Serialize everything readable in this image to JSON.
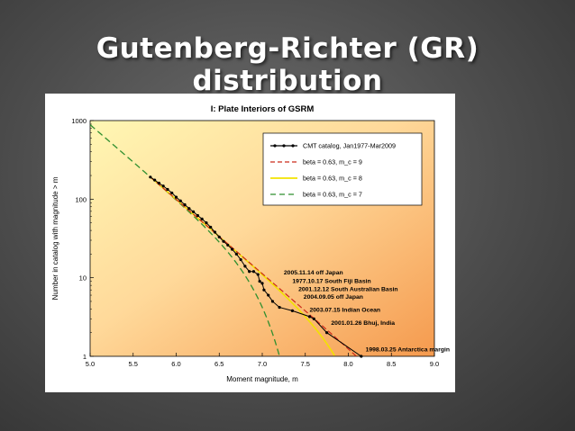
{
  "slide": {
    "title": "Gutenberg-Richter (GR) distribution"
  },
  "chart_data": {
    "type": "line",
    "title": "I: Plate Interiors of GSRM",
    "xlabel": "Moment magnitude, m",
    "ylabel": "Number in catalog with magnitude > m",
    "xlim": [
      5.0,
      9.0
    ],
    "ylim": [
      1,
      1000
    ],
    "yscale": "log",
    "x_ticks": [
      "5.0",
      "5.5",
      "6.0",
      "6.5",
      "7.0",
      "7.5",
      "8.0",
      "8.5",
      "9.0"
    ],
    "y_ticks": [
      {
        "value": 1,
        "label": "1"
      },
      {
        "value": 10,
        "label": "10"
      },
      {
        "value": 100,
        "label": "100"
      },
      {
        "value": 1000,
        "label": "1000"
      }
    ],
    "legend_position": "top-right",
    "series": [
      {
        "name": "CMT catalog, Jan1977-Mar2009",
        "color": "#000000",
        "style": "solid-markers",
        "points": [
          [
            5.7,
            191
          ],
          [
            5.75,
            175
          ],
          [
            5.8,
            160
          ],
          [
            5.85,
            147
          ],
          [
            5.9,
            133
          ],
          [
            5.95,
            120
          ],
          [
            6.0,
            106
          ],
          [
            6.05,
            95
          ],
          [
            6.1,
            85
          ],
          [
            6.15,
            76
          ],
          [
            6.2,
            69
          ],
          [
            6.25,
            62
          ],
          [
            6.3,
            56
          ],
          [
            6.35,
            50
          ],
          [
            6.4,
            44
          ],
          [
            6.45,
            38
          ],
          [
            6.5,
            33
          ],
          [
            6.55,
            29
          ],
          [
            6.6,
            26
          ],
          [
            6.65,
            23
          ],
          [
            6.7,
            20
          ],
          [
            6.75,
            17
          ],
          [
            6.8,
            14
          ],
          [
            6.85,
            12
          ],
          [
            6.9,
            12
          ],
          [
            6.95,
            11
          ],
          [
            6.97,
            9
          ],
          [
            7.0,
            8.5
          ],
          [
            7.02,
            7
          ],
          [
            7.07,
            6
          ],
          [
            7.12,
            5
          ],
          [
            7.2,
            4.2
          ],
          [
            7.35,
            3.8
          ],
          [
            7.55,
            3.2
          ],
          [
            7.6,
            3.0
          ],
          [
            7.75,
            2.0
          ],
          [
            8.15,
            1.0
          ]
        ]
      },
      {
        "name": "beta = 0.63, m_c = 9",
        "color": "#cc2a1a",
        "style": "dashed",
        "m_c": 9,
        "beta": 0.63
      },
      {
        "name": "beta = 0.63, m_c = 8",
        "color": "#f2e200",
        "style": "solid",
        "m_c": 8,
        "beta": 0.63
      },
      {
        "name": "beta = 0.63, m_c = 7",
        "color": "#2f8f2f",
        "style": "dashed",
        "m_c": 7,
        "beta": 0.63
      }
    ],
    "annotations": [
      {
        "text": "2005.11.14 off Japan",
        "x": 7.25,
        "y": 11.0
      },
      {
        "text": "1977.10.17 South Fiji Basin",
        "x": 7.35,
        "y": 8.6
      },
      {
        "text": "2001.12.12 South Australian Basin",
        "x": 7.42,
        "y": 6.8
      },
      {
        "text": "2004.09.05 off Japan",
        "x": 7.48,
        "y": 5.4
      },
      {
        "text": "2003.07.15 Indian Ocean",
        "x": 7.55,
        "y": 3.7
      },
      {
        "text": "2001.01.26 Bhuj, India",
        "x": 7.8,
        "y": 2.5
      },
      {
        "text": "1998.03.25 Antarctica margin",
        "x": 8.2,
        "y": 1.15
      }
    ]
  }
}
